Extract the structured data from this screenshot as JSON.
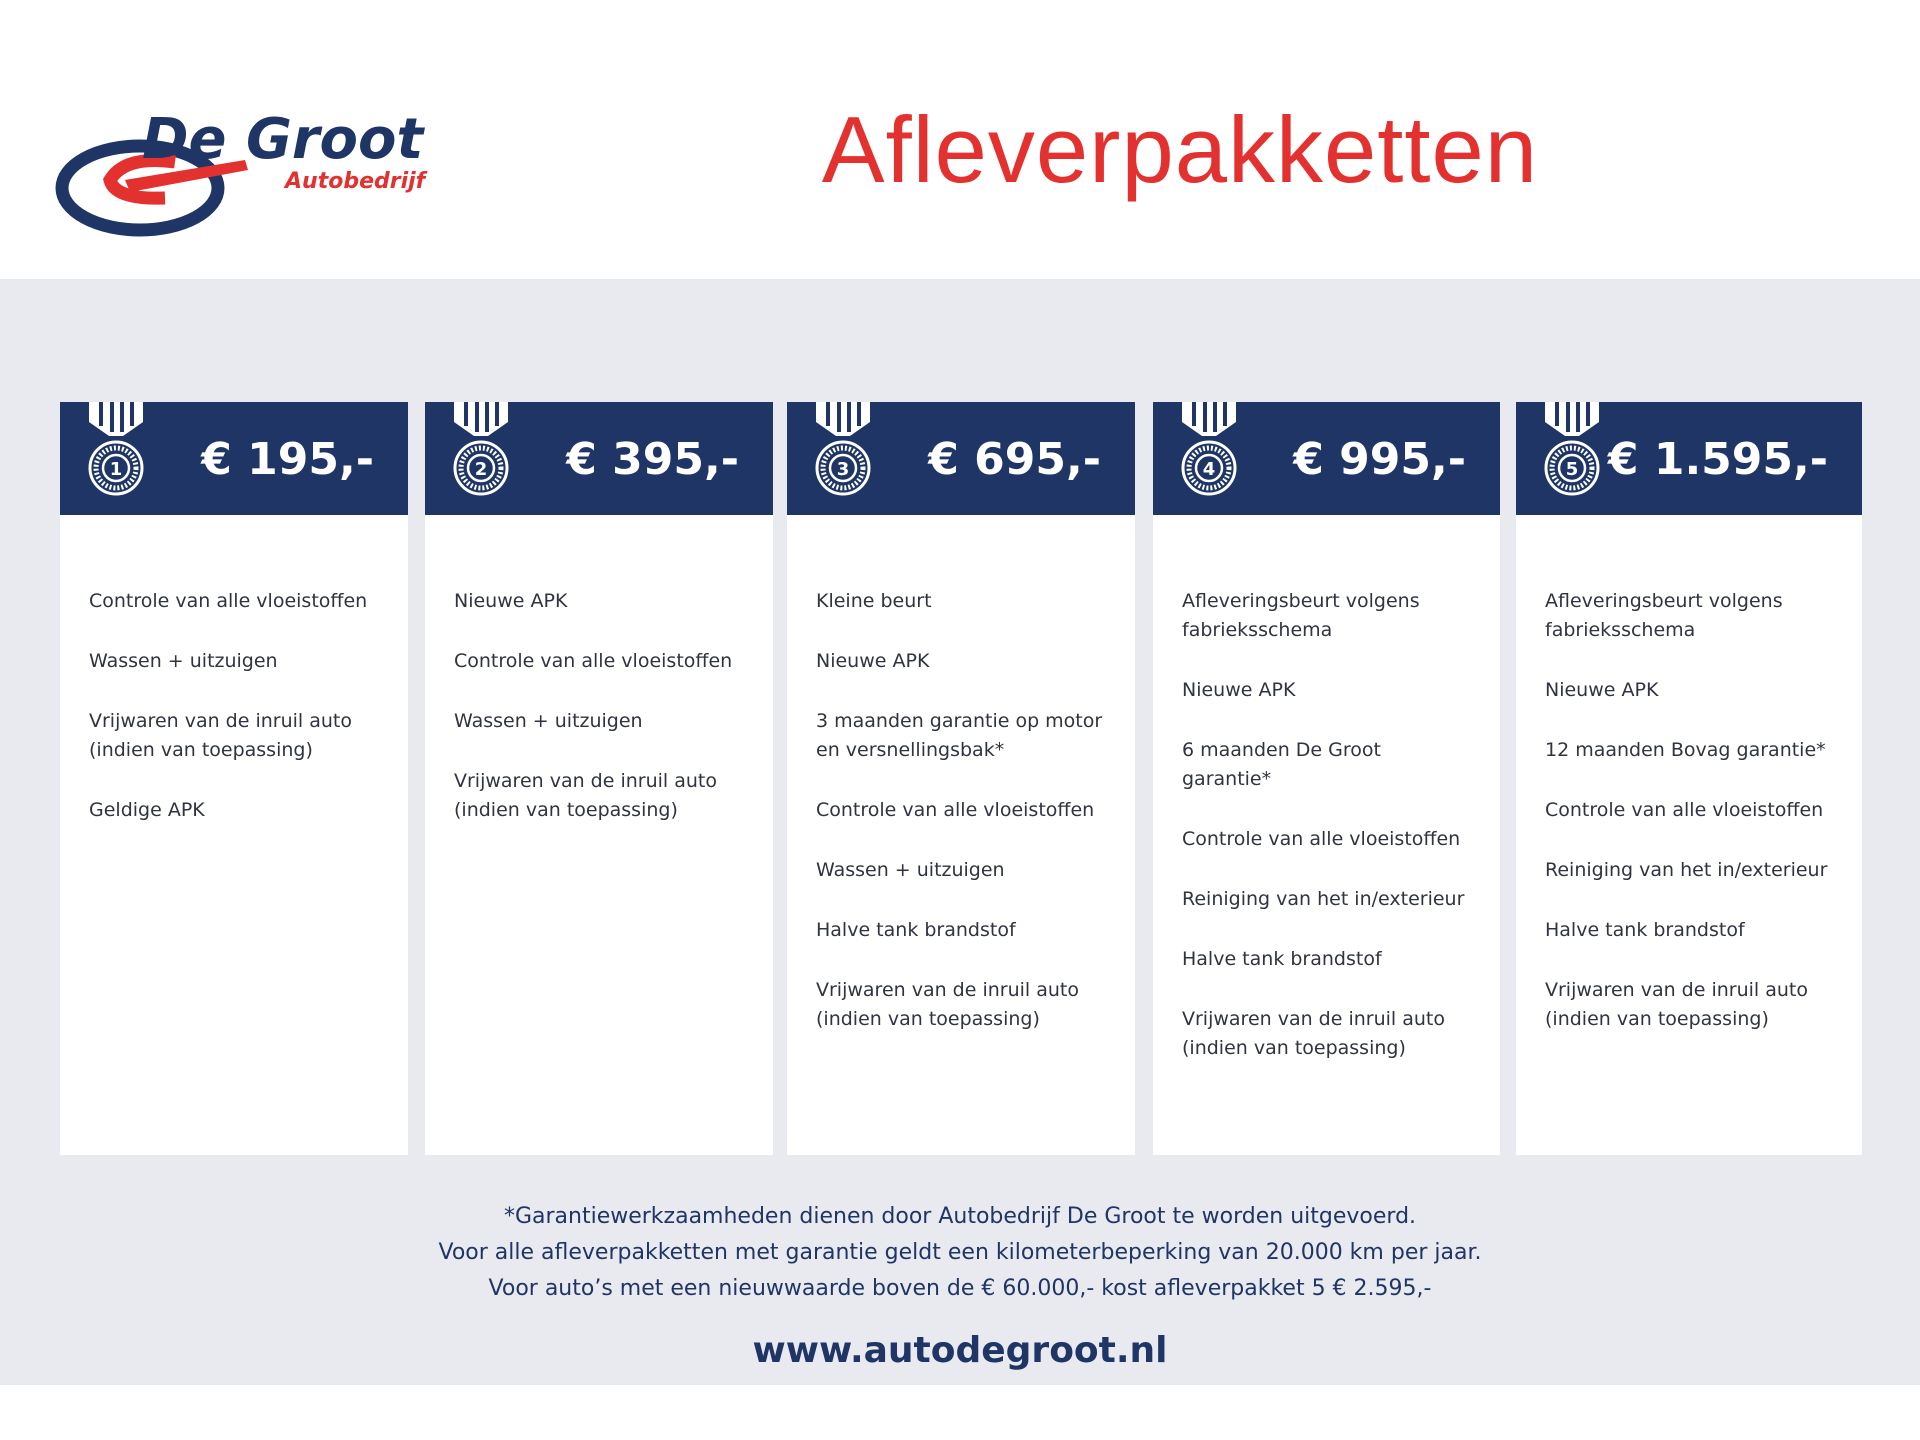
{
  "logo": {
    "name": "De Groot",
    "sub": "Autobedrijf"
  },
  "title": "Afleverpakketten",
  "colors": {
    "navy": "#1f3565",
    "red": "#e3312f",
    "band": "#e9eaef"
  },
  "packages": [
    {
      "number": "1",
      "price": "€ 195,-",
      "items": [
        "Controle van alle vloeistoffen",
        "Wassen + uitzuigen",
        "Vrijwaren van de inruil auto\n(indien van toepassing)",
        "Geldige APK"
      ]
    },
    {
      "number": "2",
      "price": "€ 395,-",
      "items": [
        "Nieuwe APK",
        "Controle van alle vloeistoffen",
        "Wassen + uitzuigen",
        "Vrijwaren van de inruil auto\n(indien van toepassing)"
      ]
    },
    {
      "number": "3",
      "price": "€ 695,-",
      "items": [
        "Kleine beurt",
        "Nieuwe APK",
        "3 maanden garantie op motor\nen versnellingsbak*",
        "Controle van alle vloeistoffen",
        "Wassen + uitzuigen",
        "Halve tank brandstof",
        "Vrijwaren van de inruil auto\n(indien van toepassing)"
      ]
    },
    {
      "number": "4",
      "price": "€ 995,-",
      "items": [
        "Afleveringsbeurt volgens\nfabrieksschema",
        "Nieuwe APK",
        "6 maanden De Groot garantie*",
        "Controle van alle vloeistoffen",
        "Reiniging van het in/exterieur",
        "Halve tank brandstof",
        "Vrijwaren van de inruil auto\n(indien van toepassing)"
      ]
    },
    {
      "number": "5",
      "price": "€ 1.595,-",
      "items": [
        "Afleveringsbeurt volgens\nfabrieksschema",
        "Nieuwe APK",
        "12 maanden Bovag garantie*",
        "Controle van alle vloeistoffen",
        "Reiniging van het in/exterieur",
        "Halve tank brandstof",
        "Vrijwaren van de inruil auto\n(indien van toepassing)"
      ]
    }
  ],
  "footer": {
    "lines": [
      "*Garantiewerkzaamheden dienen door Autobedrijf De Groot te worden uitgevoerd.",
      "Voor alle afleverpakketten met garantie geldt een kilometerbeperking van 20.000 km per jaar.",
      "Voor auto’s met een nieuwwaarde boven de € 60.000,- kost afleverpakket 5 € 2.595,-"
    ],
    "url": "www.autodegroot.nl"
  }
}
